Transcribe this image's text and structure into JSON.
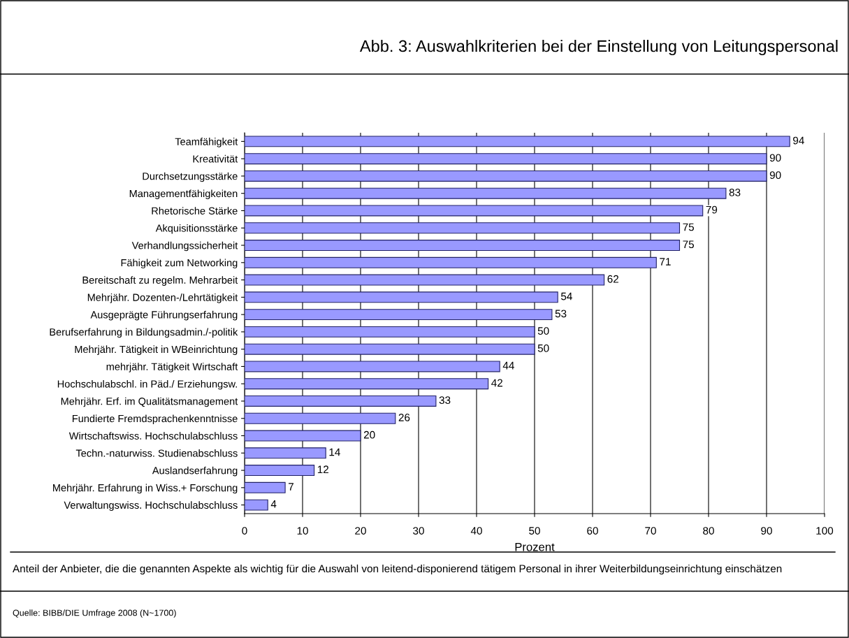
{
  "chart_data": {
    "type": "bar",
    "orientation": "horizontal",
    "title": "Abb. 3: Auswahlkriterien bei der Einstellung von Leitungspersonal",
    "categories": [
      "Teamfähigkeit",
      "Kreativität",
      "Durchsetzungsstärke",
      "Managementfähigkeiten",
      "Rhetorische Stärke",
      "Akquisitionsstärke",
      "Verhandlungssicherheit",
      "Fähigkeit zum Networking",
      "Bereitschaft zu regelm. Mehrarbeit",
      "Mehrjähr. Dozenten-/Lehrtätigkeit",
      "Ausgeprägte Führungserfahrung",
      "Berufserfahrung in Bildungsadmin./-politik",
      "Mehrjähr. Tätigkeit in WBeinrichtung",
      "mehrjähr. Tätigkeit Wirtschaft",
      "Hochschulabschl. in Päd./ Erziehungsw.",
      "Mehrjähr. Erf. im Qualitätsmanagement",
      "Fundierte Fremdsprachenkenntnisse",
      "Wirtschaftswiss. Hochschulabschluss",
      "Techn.-naturwiss. Studienabschluss",
      "Auslandserfahrung",
      "Mehrjähr. Erfahrung in Wiss.+ Forschung",
      "Verwaltungswiss. Hochschulabschluss"
    ],
    "values": [
      94,
      90,
      90,
      83,
      79,
      75,
      75,
      71,
      62,
      54,
      53,
      50,
      50,
      44,
      42,
      33,
      26,
      20,
      14,
      12,
      7,
      4
    ],
    "color": "#9999ff",
    "data_labels": true,
    "xlabel": "Prozent",
    "xlim": [
      0,
      100
    ],
    "xticks": [
      0,
      10,
      20,
      30,
      40,
      50,
      60,
      70,
      80,
      90,
      100
    ],
    "grid": "x",
    "annotations": [
      "Anteil der Anbieter, die die genannten Aspekte als wichtig für die Auswahl von leitend-disponierend tätigem Personal in ihrer Weiterbildungseinrichtung einschätzen",
      "Quelle: BIBB/DIE Umfrage 2008 (N~1700)"
    ]
  }
}
